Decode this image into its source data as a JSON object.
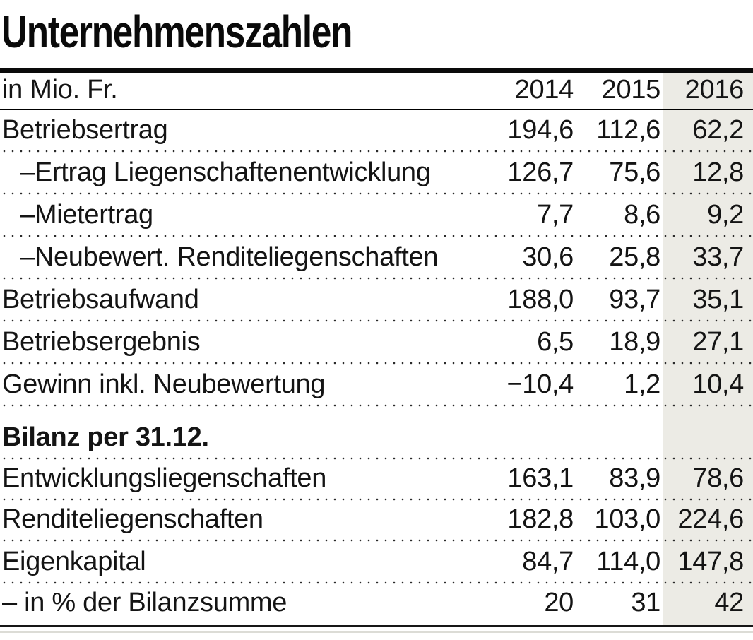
{
  "chart_data": {
    "type": "table",
    "title": "Unternehmenszahlen",
    "unit_label": "in Mio. Fr.",
    "columns": [
      "2014",
      "2015",
      "2016"
    ],
    "highlighted_column": "2016",
    "colors": {
      "highlight_bg": "#ECEBE5",
      "text": "#141414",
      "rule": "#0a0a0a"
    },
    "rows": [
      {
        "label": "Betriebsertrag",
        "values": [
          "194,6",
          "112,6",
          "62,2"
        ]
      },
      {
        "label": "–Ertrag Liegenschaftenentwicklung",
        "indent": true,
        "values": [
          "126,7",
          "75,6",
          "12,8"
        ]
      },
      {
        "label": "–Mietertrag",
        "indent": true,
        "values": [
          "7,7",
          "8,6",
          "9,2"
        ]
      },
      {
        "label": "–Neubewert. Renditeliegenschaften",
        "indent": true,
        "values": [
          "30,6",
          "25,8",
          "33,7"
        ]
      },
      {
        "label": "Betriebsaufwand",
        "values": [
          "188,0",
          "93,7",
          "35,1"
        ]
      },
      {
        "label": "Betriebsergebnis",
        "values": [
          "6,5",
          "18,9",
          "27,1"
        ]
      },
      {
        "label": "Gewinn inkl. Neubewertung",
        "values": [
          "−10,4",
          "1,2",
          "10,4"
        ]
      },
      {
        "label": "Bilanz per 31.12.",
        "section": true,
        "values": [
          "",
          "",
          ""
        ]
      },
      {
        "label": "Entwicklungsliegenschaften",
        "values": [
          "163,1",
          "83,9",
          "78,6"
        ]
      },
      {
        "label": "Renditeliegenschaften",
        "values": [
          "182,8",
          "103,0",
          "224,6"
        ]
      },
      {
        "label": "Eigenkapital",
        "values": [
          "84,7",
          "114,0",
          "147,8"
        ]
      },
      {
        "label": "– in % der Bilanzsumme",
        "values": [
          "20",
          "31",
          "42"
        ]
      }
    ]
  }
}
